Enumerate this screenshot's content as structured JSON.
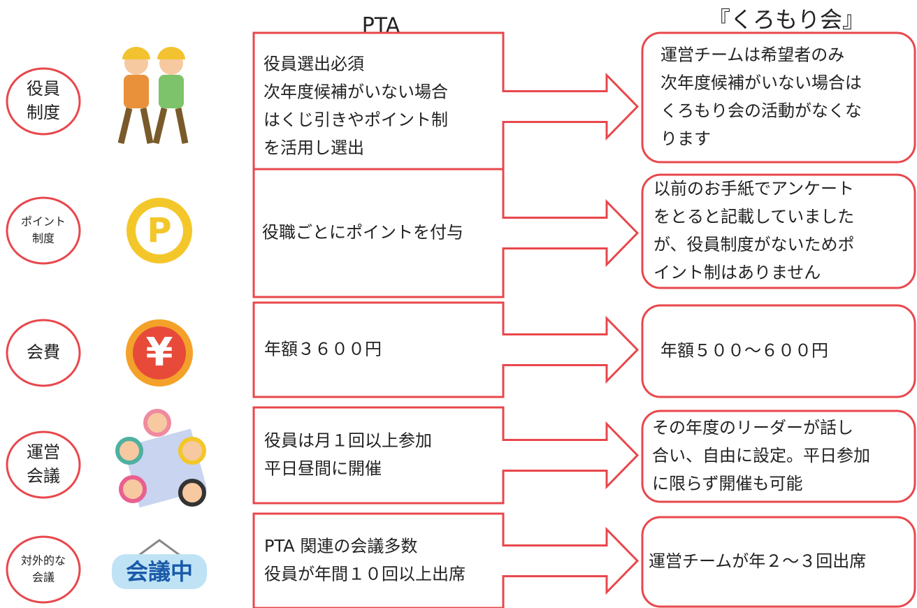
{
  "headers": {
    "pta": "PTA",
    "kuromori": "『くろもり会』"
  },
  "rows": [
    {
      "label": [
        "役員",
        "制度"
      ],
      "pta": [
        "役員選出必須",
        "次年度候補がいない場合",
        "はくじ引きやポイント制",
        "を活用し選出"
      ],
      "kuromori": [
        "運営チームは希望者のみ",
        "次年度候補がいない場合は",
        "くろもり会の活動がなくな",
        "ります"
      ]
    },
    {
      "label": [
        "ポイント",
        "制度"
      ],
      "icon_text": "P",
      "pta": [
        "役職ごとにポイントを付与"
      ],
      "kuromori": [
        "以前のお手紙でアンケート",
        "をとると記載していました",
        "が、役員制度がないためポ",
        "イント制はありません"
      ]
    },
    {
      "label": [
        "会費"
      ],
      "icon_text": "¥",
      "pta": [
        "年額３６００円"
      ],
      "kuromori": [
        "年額５００～６００円"
      ]
    },
    {
      "label": [
        "運営",
        "会議"
      ],
      "pta": [
        "役員は月１回以上参加",
        "平日昼間に開催"
      ],
      "kuromori": [
        "その年度のリーダーが話し",
        "合い、自由に設定。平日参加",
        "に限らず開催も可能"
      ]
    },
    {
      "label": [
        "対外的な",
        "会議"
      ],
      "icon_text": "会議中",
      "pta": [
        "PTA 関連の会議多数",
        "役員が年間１０回以上出席"
      ],
      "kuromori": [
        "運営チームが年２～３回出席"
      ]
    }
  ]
}
